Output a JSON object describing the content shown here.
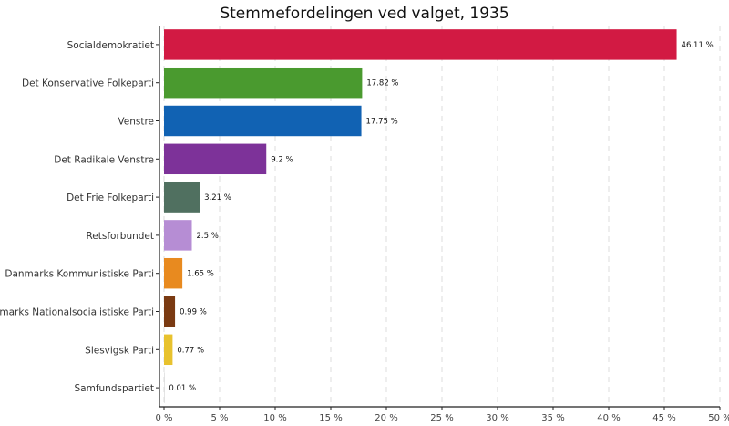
{
  "chart_data": {
    "type": "bar",
    "orientation": "horizontal",
    "title": "Stemmefordelingen ved valget, 1935",
    "xlabel": "",
    "ylabel": "",
    "xlim": [
      0,
      50
    ],
    "grid": true,
    "categories": [
      "Socialdemokratiet",
      "Det Konservative Folkeparti",
      "Venstre",
      "Det Radikale Venstre",
      "Det Frie Folkeparti",
      "Retsforbundet",
      "Danmarks Kommunistiske Parti",
      "Danmarks Nationalsocialistiske Parti",
      "Slesvigsk Parti",
      "Samfundspartiet"
    ],
    "values": [
      46.11,
      17.82,
      17.75,
      9.2,
      3.21,
      2.5,
      1.65,
      0.99,
      0.77,
      0.01
    ],
    "value_labels": [
      "46.11 %",
      "17.82 %",
      "17.75 %",
      "9.2 %",
      "3.21 %",
      "2.5 %",
      "1.65 %",
      "0.99 %",
      "0.77 %",
      "0.01 %"
    ],
    "colors": [
      "#d21a43",
      "#4a9a2f",
      "#1162b3",
      "#7d3299",
      "#507060",
      "#b68dd4",
      "#e88a1f",
      "#7a3a12",
      "#e8c22e",
      "#bbbbbb"
    ],
    "x_ticks": [
      0,
      5,
      10,
      15,
      20,
      25,
      30,
      35,
      40,
      45,
      50
    ],
    "x_tick_labels": [
      "0 %",
      "5 %",
      "10 %",
      "15 %",
      "20 %",
      "25 %",
      "30 %",
      "35 %",
      "40 %",
      "45 %",
      "50 %"
    ]
  }
}
